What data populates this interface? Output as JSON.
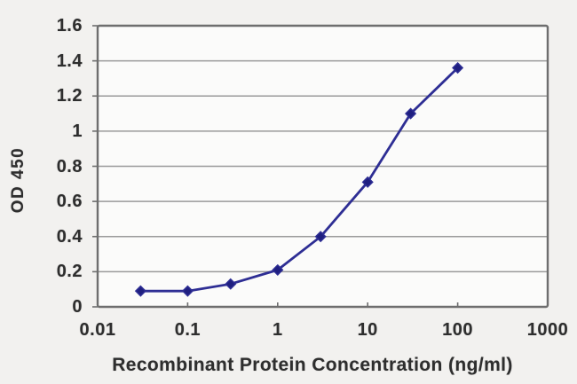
{
  "chart_data": {
    "type": "line",
    "title": "",
    "xlabel": "Recombinant Protein Concentration (ng/ml)",
    "ylabel": "OD 450",
    "x_scale": "log",
    "x": [
      0.03,
      0.1,
      0.3,
      1,
      3,
      10,
      30,
      100
    ],
    "y": [
      0.09,
      0.09,
      0.13,
      0.21,
      0.4,
      0.71,
      1.1,
      1.36
    ],
    "xlim": [
      0.01,
      1000
    ],
    "ylim": [
      0,
      1.6
    ],
    "x_ticks": [
      0.01,
      0.1,
      1,
      10,
      100,
      1000
    ],
    "x_tick_labels": [
      "0.01",
      "0.1",
      "1",
      "10",
      "100",
      "1000"
    ],
    "y_ticks": [
      0,
      0.2,
      0.4,
      0.6,
      0.8,
      1,
      1.2,
      1.4,
      1.6
    ],
    "y_tick_labels": [
      "0",
      "0.2",
      "0.4",
      "0.6",
      "0.8",
      "1",
      "1.2",
      "1.4",
      "1.6"
    ],
    "grid": "horizontal",
    "legend": "none",
    "marker": "diamond",
    "colors": {
      "line": "#2e2e94",
      "marker_fill": "#1f1f80",
      "grid": "#9a9a9a",
      "frame": "#6e6e6e",
      "text": "#2e2e2e",
      "background": "#f2f1ef",
      "plot_background": "#fbfbfa"
    }
  }
}
